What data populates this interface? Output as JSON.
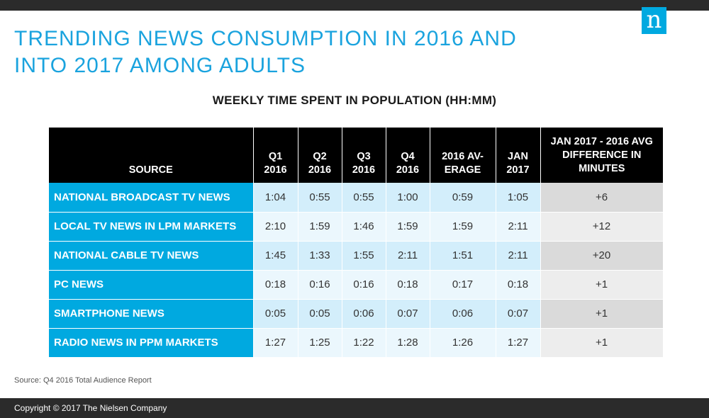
{
  "header": {
    "title_line1": "TRENDING NEWS CONSUMPTION IN 2016 AND",
    "title_line2": "INTO 2017 AMONG ADULTS",
    "logo_letter": "n"
  },
  "chart_data": {
    "type": "table",
    "title": "WEEKLY TIME SPENT IN POPULATION (HH:MM)",
    "columns": [
      {
        "line1": "SOURCE",
        "line2": ""
      },
      {
        "line1": "Q1",
        "line2": "2016"
      },
      {
        "line1": "Q2",
        "line2": "2016"
      },
      {
        "line1": "Q3",
        "line2": "2016"
      },
      {
        "line1": "Q4",
        "line2": "2016"
      },
      {
        "line1": "2016 AV-",
        "line2": "ERAGE"
      },
      {
        "line1": "JAN",
        "line2": "2017"
      },
      {
        "line1": "JAN 2017 - 2016 AVG",
        "line2": "DIFFERENCE IN",
        "line3": "MINUTES"
      }
    ],
    "rows": [
      {
        "source": "NATIONAL BROADCAST  TV NEWS",
        "q1": "1:04",
        "q2": "0:55",
        "q3": "0:55",
        "q4": "1:00",
        "avg": "0:59",
        "jan": "1:05",
        "diff": "+6"
      },
      {
        "source": "LOCAL TV NEWS IN LPM MARKETS",
        "q1": "2:10",
        "q2": "1:59",
        "q3": "1:46",
        "q4": "1:59",
        "avg": "1:59",
        "jan": "2:11",
        "diff": "+12"
      },
      {
        "source": "NATIONAL CABLE TV NEWS",
        "q1": "1:45",
        "q2": "1:33",
        "q3": "1:55",
        "q4": "2:11",
        "avg": "1:51",
        "jan": "2:11",
        "diff": "+20"
      },
      {
        "source": "PC NEWS",
        "q1": "0:18",
        "q2": "0:16",
        "q3": "0:16",
        "q4": "0:18",
        "avg": "0:17",
        "jan": "0:18",
        "diff": "+1"
      },
      {
        "source": "SMARTPHONE NEWS",
        "q1": "0:05",
        "q2": "0:05",
        "q3": "0:06",
        "q4": "0:07",
        "avg": "0:06",
        "jan": "0:07",
        "diff": "+1"
      },
      {
        "source": "RADIO NEWS IN PPM MARKETS",
        "q1": "1:27",
        "q2": "1:25",
        "q3": "1:22",
        "q4": "1:28",
        "avg": "1:26",
        "jan": "1:27",
        "diff": "+1"
      }
    ]
  },
  "notes": {
    "source": "Source: Q4 2016 Total Audience Report"
  },
  "footer": {
    "copyright": "Copyright © 2017 The Nielsen Company"
  },
  "colors": {
    "accent": "#00a9e0",
    "title": "#1aa3de",
    "header_bg": "#000000",
    "bar_bg": "#2b2b2b"
  }
}
